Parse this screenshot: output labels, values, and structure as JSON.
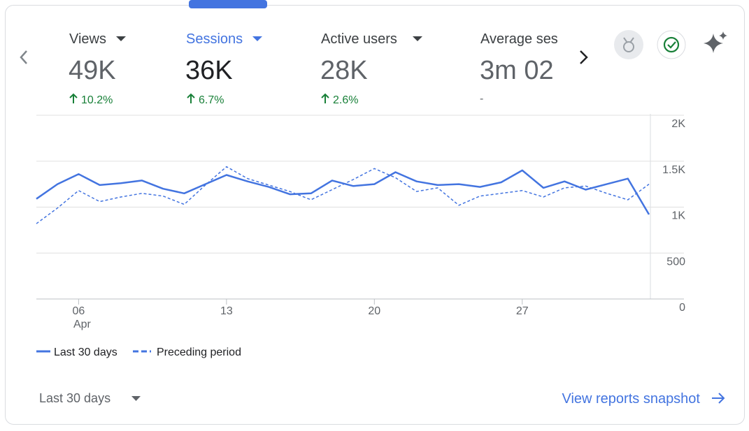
{
  "tabs": [
    {
      "label": "Views",
      "value": "49K",
      "change": "10.2%"
    },
    {
      "label": "Sessions",
      "value": "36K",
      "change": "6.7%"
    },
    {
      "label": "Active users",
      "value": "28K",
      "change": "2.6%"
    },
    {
      "label": "Average ses",
      "value": "3m 02",
      "change": "-"
    }
  ],
  "chart_data": {
    "type": "line",
    "categories": [
      null,
      null,
      "06",
      null,
      null,
      null,
      null,
      null,
      null,
      "13",
      null,
      null,
      null,
      null,
      null,
      null,
      "20",
      null,
      null,
      null,
      null,
      null,
      null,
      "27",
      null,
      null,
      null,
      null,
      null,
      null
    ],
    "month_label": "Apr",
    "series": [
      {
        "name": "Last 30 days",
        "color": "#4374e0",
        "dashed": false,
        "values": [
          1090,
          1250,
          1360,
          1240,
          1260,
          1290,
          1200,
          1150,
          1250,
          1350,
          1280,
          1220,
          1140,
          1150,
          1290,
          1230,
          1250,
          1380,
          1280,
          1240,
          1250,
          1220,
          1270,
          1400,
          1210,
          1280,
          1190,
          1250,
          1310,
          920
        ]
      },
      {
        "name": "Preceding period",
        "color": "#4374e0",
        "dashed": true,
        "values": [
          820,
          990,
          1180,
          1060,
          1110,
          1150,
          1120,
          1030,
          1240,
          1440,
          1310,
          1240,
          1170,
          1080,
          1190,
          1300,
          1420,
          1320,
          1170,
          1210,
          1020,
          1120,
          1150,
          1180,
          1110,
          1210,
          1230,
          1150,
          1080,
          1250
        ]
      }
    ],
    "ylim": [
      0,
      2000
    ],
    "yticks": [
      0,
      500,
      {
        "value": 1000,
        "label": "1K"
      },
      {
        "value": 1500,
        "label": "1.5K"
      },
      {
        "value": 2000,
        "label": "2K"
      }
    ],
    "grid": true
  },
  "footer": {
    "range": "Last 30 days",
    "link": "View reports snapshot"
  }
}
